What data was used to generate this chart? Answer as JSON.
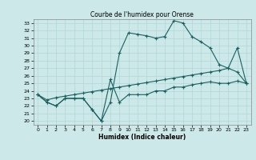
{
  "title": "Courbe de l'humidex pour Orense",
  "xlabel": "Humidex (Indice chaleur)",
  "xlim": [
    -0.5,
    23.5
  ],
  "ylim": [
    19.5,
    33.5
  ],
  "yticks": [
    20,
    21,
    22,
    23,
    24,
    25,
    26,
    27,
    28,
    29,
    30,
    31,
    32,
    33
  ],
  "xticks": [
    0,
    1,
    2,
    3,
    4,
    5,
    6,
    7,
    8,
    9,
    10,
    11,
    12,
    13,
    14,
    15,
    16,
    17,
    18,
    19,
    20,
    21,
    22,
    23
  ],
  "bg_color": "#cce8e8",
  "line_color": "#1a6060",
  "grid_color": "#b0d8d8",
  "line1_x": [
    0,
    1,
    2,
    3,
    4,
    5,
    6,
    7,
    8,
    9,
    10,
    11,
    12,
    13,
    14,
    15,
    16,
    17,
    18,
    19,
    20,
    21,
    22,
    23
  ],
  "line1_y": [
    23.5,
    22.5,
    22.0,
    23.0,
    23.0,
    23.0,
    21.5,
    20.0,
    22.5,
    29.0,
    31.7,
    31.5,
    31.3,
    31.0,
    31.2,
    33.3,
    33.0,
    31.2,
    30.5,
    29.7,
    27.5,
    27.0,
    26.5,
    25.0
  ],
  "line2_x": [
    0,
    1,
    2,
    3,
    4,
    5,
    6,
    7,
    8,
    9,
    10,
    11,
    12,
    13,
    14,
    15,
    16,
    17,
    18,
    19,
    20,
    21,
    22,
    23
  ],
  "line2_y": [
    23.5,
    22.5,
    22.0,
    23.0,
    23.0,
    23.0,
    21.5,
    20.0,
    25.5,
    22.5,
    23.5,
    23.5,
    23.5,
    24.0,
    24.0,
    24.5,
    24.5,
    24.8,
    25.0,
    25.2,
    25.0,
    25.0,
    25.3,
    25.0
  ],
  "line3_x": [
    0,
    1,
    2,
    3,
    4,
    5,
    6,
    7,
    8,
    9,
    10,
    11,
    12,
    13,
    14,
    15,
    16,
    17,
    18,
    19,
    20,
    21,
    22,
    23
  ],
  "line3_y": [
    23.5,
    22.8,
    23.1,
    23.3,
    23.5,
    23.7,
    23.9,
    24.1,
    24.3,
    24.5,
    24.7,
    24.9,
    25.1,
    25.3,
    25.5,
    25.7,
    25.9,
    26.1,
    26.3,
    26.5,
    26.7,
    27.0,
    29.7,
    25.0
  ]
}
